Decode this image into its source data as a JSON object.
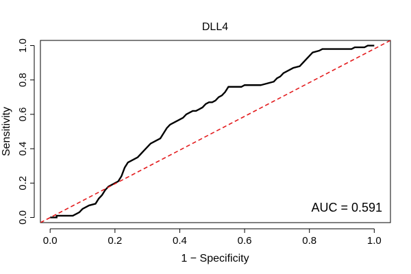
{
  "chart_data": {
    "type": "line",
    "title": "DLL4",
    "xlabel": "1 − Specificity",
    "ylabel": "Sensitivity",
    "xlim": [
      -0.03,
      1.05
    ],
    "ylim": [
      -0.03,
      1.03
    ],
    "x_ticks": [
      0.0,
      0.2,
      0.4,
      0.6,
      0.8,
      1.0
    ],
    "x_tick_labels": [
      "0.0",
      "0.2",
      "0.4",
      "0.6",
      "0.8",
      "1.0"
    ],
    "y_ticks": [
      0.0,
      0.2,
      0.4,
      0.6,
      0.8,
      1.0
    ],
    "y_tick_labels": [
      "0.0",
      "0.2",
      "0.4",
      "0.6",
      "0.8",
      "1.0"
    ],
    "grid": false,
    "annotation": "AUC = 0.591",
    "series": [
      {
        "style": "solid",
        "color": "#000000",
        "points": [
          [
            0.0,
            0.0
          ],
          [
            0.02,
            0.0
          ],
          [
            0.02,
            0.01
          ],
          [
            0.07,
            0.01
          ],
          [
            0.08,
            0.02
          ],
          [
            0.09,
            0.03
          ],
          [
            0.1,
            0.05
          ],
          [
            0.11,
            0.06
          ],
          [
            0.12,
            0.07
          ],
          [
            0.14,
            0.08
          ],
          [
            0.15,
            0.11
          ],
          [
            0.16,
            0.13
          ],
          [
            0.17,
            0.16
          ],
          [
            0.18,
            0.18
          ],
          [
            0.19,
            0.19
          ],
          [
            0.2,
            0.2
          ],
          [
            0.21,
            0.21
          ],
          [
            0.22,
            0.24
          ],
          [
            0.23,
            0.29
          ],
          [
            0.24,
            0.32
          ],
          [
            0.25,
            0.33
          ],
          [
            0.26,
            0.34
          ],
          [
            0.27,
            0.35
          ],
          [
            0.28,
            0.37
          ],
          [
            0.29,
            0.39
          ],
          [
            0.3,
            0.41
          ],
          [
            0.31,
            0.43
          ],
          [
            0.32,
            0.44
          ],
          [
            0.33,
            0.45
          ],
          [
            0.34,
            0.46
          ],
          [
            0.35,
            0.49
          ],
          [
            0.36,
            0.52
          ],
          [
            0.37,
            0.54
          ],
          [
            0.38,
            0.55
          ],
          [
            0.39,
            0.56
          ],
          [
            0.4,
            0.57
          ],
          [
            0.41,
            0.58
          ],
          [
            0.42,
            0.6
          ],
          [
            0.43,
            0.61
          ],
          [
            0.44,
            0.62
          ],
          [
            0.45,
            0.62
          ],
          [
            0.46,
            0.63
          ],
          [
            0.47,
            0.64
          ],
          [
            0.48,
            0.66
          ],
          [
            0.49,
            0.67
          ],
          [
            0.5,
            0.67
          ],
          [
            0.51,
            0.68
          ],
          [
            0.52,
            0.7
          ],
          [
            0.53,
            0.71
          ],
          [
            0.54,
            0.73
          ],
          [
            0.55,
            0.76
          ],
          [
            0.57,
            0.76
          ],
          [
            0.59,
            0.76
          ],
          [
            0.6,
            0.77
          ],
          [
            0.65,
            0.77
          ],
          [
            0.67,
            0.78
          ],
          [
            0.69,
            0.79
          ],
          [
            0.7,
            0.81
          ],
          [
            0.71,
            0.82
          ],
          [
            0.72,
            0.84
          ],
          [
            0.74,
            0.86
          ],
          [
            0.75,
            0.87
          ],
          [
            0.77,
            0.88
          ],
          [
            0.78,
            0.9
          ],
          [
            0.79,
            0.92
          ],
          [
            0.8,
            0.94
          ],
          [
            0.81,
            0.96
          ],
          [
            0.83,
            0.97
          ],
          [
            0.84,
            0.98
          ],
          [
            0.93,
            0.98
          ],
          [
            0.94,
            0.99
          ],
          [
            0.97,
            0.99
          ],
          [
            0.98,
            1.0
          ],
          [
            1.0,
            1.0
          ]
        ]
      },
      {
        "style": "dashed",
        "color": "#e31a1c",
        "points": [
          [
            -0.03,
            -0.03
          ],
          [
            1.05,
            1.03
          ]
        ]
      }
    ]
  }
}
